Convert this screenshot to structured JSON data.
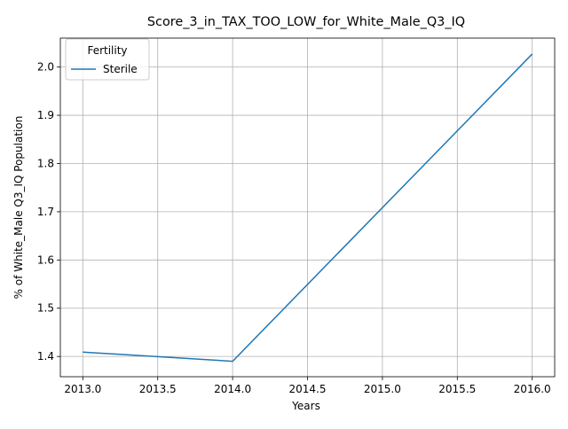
{
  "chart_data": {
    "type": "line",
    "title": "Score_3_in_TAX_TOO_LOW_for_White_Male_Q3_IQ",
    "xlabel": "Years",
    "ylabel": "% of White_Male Q3_IQ Population",
    "xlim": [
      2012.85,
      2016.15
    ],
    "ylim": [
      1.358,
      2.06
    ],
    "xticks": [
      2013.0,
      2013.5,
      2014.0,
      2014.5,
      2015.0,
      2015.5,
      2016.0
    ],
    "xtick_labels": [
      "2013.0",
      "2013.5",
      "2014.0",
      "2014.5",
      "2015.0",
      "2015.5",
      "2016.0"
    ],
    "yticks": [
      1.4,
      1.5,
      1.6,
      1.7,
      1.8,
      1.9,
      2.0
    ],
    "ytick_labels": [
      "1.4",
      "1.5",
      "1.6",
      "1.7",
      "1.8",
      "1.9",
      "2.0"
    ],
    "grid": true,
    "legend": {
      "title": "Fertility",
      "placement": "top-left"
    },
    "series": [
      {
        "name": "Sterile",
        "color": "#1f77b4",
        "x": [
          2013,
          2014,
          2016
        ],
        "y": [
          1.409,
          1.39,
          2.027
        ]
      }
    ]
  }
}
